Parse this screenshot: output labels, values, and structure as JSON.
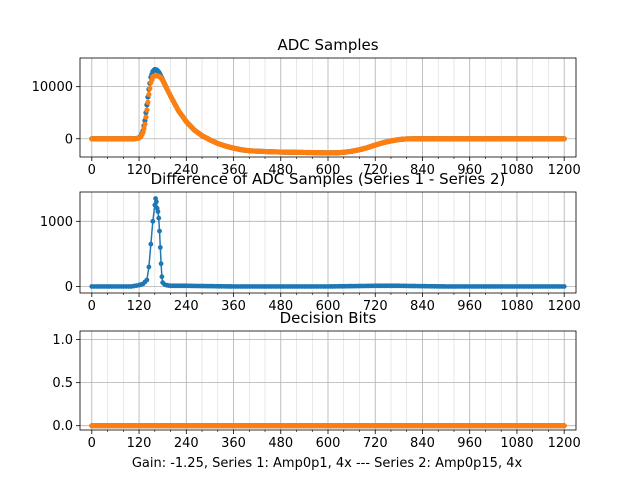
{
  "figure_caption": "Gain: -1.25, Series 1: Amp0p1, 4x --- Series 2: Amp0p15, 4x",
  "colors": {
    "series1": "#1f77b4",
    "series2": "#ff7f0e",
    "grid": "#b0b0b0"
  },
  "chart_data": [
    {
      "type": "scatter",
      "title": "ADC Samples",
      "xlabel": "",
      "ylabel": "",
      "xlim": [
        -30,
        1230
      ],
      "ylim": [
        -3500,
        15500
      ],
      "xticks": [
        0,
        120,
        240,
        360,
        480,
        600,
        720,
        840,
        960,
        1080,
        1200
      ],
      "xtick_labels": [
        "0",
        "120",
        "240",
        "360",
        "480",
        "600",
        "720",
        "840",
        "960",
        "1080",
        "1200"
      ],
      "yticks": [
        0,
        10000
      ],
      "ytick_labels": [
        "0",
        "10000"
      ],
      "grid": true,
      "series": [
        {
          "name": "Series 1",
          "x": [
            0,
            100,
            110,
            120,
            125,
            130,
            135,
            140,
            145,
            150,
            155,
            160,
            165,
            170,
            175,
            180,
            185,
            190,
            200,
            210,
            220,
            240,
            260,
            280,
            300,
            320,
            340,
            360,
            380,
            400,
            440,
            480,
            520,
            560,
            600,
            620,
            640,
            660,
            680,
            700,
            720,
            740,
            760,
            780,
            800,
            820,
            840,
            900,
            1000,
            1100,
            1200
          ],
          "y": [
            0,
            0,
            0,
            200,
            600,
            1500,
            3500,
            6500,
            9500,
            11800,
            12900,
            13300,
            13200,
            12800,
            12100,
            11300,
            10500,
            9700,
            8200,
            6800,
            5400,
            3300,
            1700,
            600,
            -200,
            -900,
            -1400,
            -1800,
            -2100,
            -2300,
            -2450,
            -2550,
            -2600,
            -2650,
            -2700,
            -2680,
            -2600,
            -2400,
            -2100,
            -1700,
            -1200,
            -750,
            -400,
            -150,
            -20,
            0,
            0,
            0,
            0,
            0,
            0
          ]
        },
        {
          "name": "Series 2",
          "x": [
            0,
            100,
            110,
            120,
            125,
            130,
            135,
            140,
            145,
            150,
            155,
            160,
            165,
            170,
            175,
            180,
            185,
            190,
            200,
            210,
            220,
            240,
            260,
            280,
            300,
            320,
            340,
            360,
            380,
            400,
            440,
            480,
            520,
            560,
            600,
            620,
            640,
            660,
            680,
            700,
            720,
            740,
            760,
            780,
            800,
            820,
            840,
            900,
            1000,
            1100,
            1200
          ],
          "y": [
            0,
            0,
            0,
            150,
            450,
            1200,
            2800,
            5500,
            8500,
            10800,
            11900,
            12100,
            12100,
            12000,
            11800,
            11200,
            10500,
            9700,
            8200,
            6800,
            5400,
            3300,
            1700,
            600,
            -200,
            -900,
            -1400,
            -1800,
            -2100,
            -2300,
            -2450,
            -2550,
            -2600,
            -2650,
            -2700,
            -2680,
            -2600,
            -2400,
            -2100,
            -1700,
            -1200,
            -750,
            -400,
            -150,
            -20,
            0,
            0,
            0,
            0,
            0,
            0
          ]
        }
      ]
    },
    {
      "type": "line",
      "title": "Difference of ADC Samples (Series 1 - Series 2)",
      "xlabel": "",
      "ylabel": "",
      "xlim": [
        -30,
        1230
      ],
      "ylim": [
        -100,
        1450
      ],
      "xticks": [
        0,
        120,
        240,
        360,
        480,
        600,
        720,
        840,
        960,
        1080,
        1200
      ],
      "xtick_labels": [
        "0",
        "120",
        "240",
        "360",
        "480",
        "600",
        "720",
        "840",
        "960",
        "1080",
        "1200"
      ],
      "yticks": [
        0,
        1000
      ],
      "ytick_labels": [
        "0",
        "1000"
      ],
      "grid": true,
      "series": [
        {
          "name": "Series 1 - Series 2",
          "x": [
            0,
            50,
            100,
            120,
            130,
            140,
            145,
            150,
            155,
            160,
            162,
            164,
            166,
            168,
            170,
            172,
            174,
            176,
            178,
            180,
            185,
            190,
            200,
            240,
            300,
            360,
            420,
            480,
            540,
            600,
            660,
            720,
            780,
            840,
            900,
            960,
            1020,
            1080,
            1140,
            1200
          ],
          "y": [
            0,
            0,
            0,
            20,
            40,
            100,
            300,
            650,
            1000,
            1250,
            1350,
            1300,
            1200,
            1150,
            1050,
            850,
            600,
            350,
            150,
            60,
            30,
            20,
            10,
            10,
            5,
            0,
            0,
            0,
            0,
            0,
            5,
            10,
            10,
            5,
            0,
            0,
            0,
            0,
            0,
            0
          ]
        }
      ]
    },
    {
      "type": "scatter",
      "title": "Decision Bits",
      "xlabel": "Gain: -1.25, Series 1: Amp0p1, 4x --- Series 2: Amp0p15, 4x",
      "ylabel": "",
      "xlim": [
        -30,
        1230
      ],
      "ylim": [
        -0.05,
        1.1
      ],
      "xticks": [
        0,
        120,
        240,
        360,
        480,
        600,
        720,
        840,
        960,
        1080,
        1200
      ],
      "xtick_labels": [
        "0",
        "120",
        "240",
        "360",
        "480",
        "600",
        "720",
        "840",
        "960",
        "1080",
        "1200"
      ],
      "yticks": [
        0.0,
        0.5,
        1.0
      ],
      "ytick_labels": [
        "0.0",
        "0.5",
        "1.0"
      ],
      "grid": true,
      "series": [
        {
          "name": "Series 1",
          "x": [
            0,
            1200
          ],
          "y": [
            0,
            0
          ]
        },
        {
          "name": "Series 2",
          "x": [
            0,
            1200
          ],
          "y": [
            0,
            0
          ]
        }
      ]
    }
  ]
}
